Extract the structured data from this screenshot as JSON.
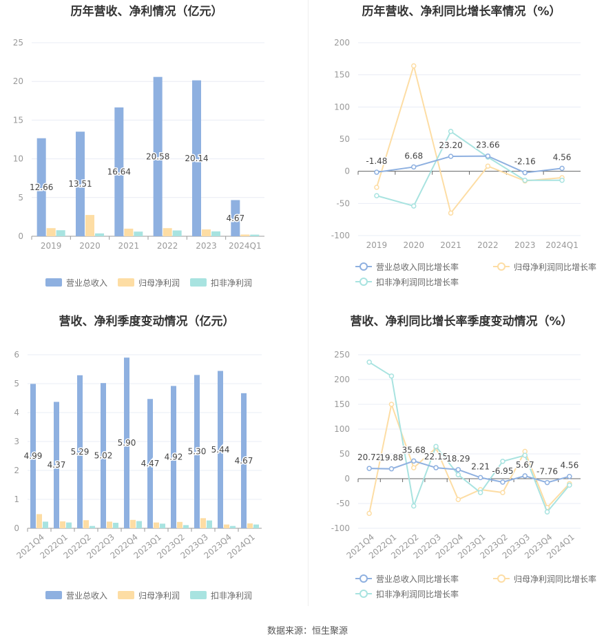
{
  "colors": {
    "revenue": "#8EB0E0",
    "net_profit": "#FDDDA4",
    "deducted_profit": "#A8E3E0",
    "revenue_line": "#8EB0E0",
    "net_profit_line": "#FDDDA4",
    "deducted_line": "#A8E3E0",
    "axis_text": "#999999",
    "label_text": "#444444",
    "title_text": "#333333",
    "grid": "#E8ECF4"
  },
  "footer": {
    "source": "数据来源：恒生聚源"
  },
  "chart_data": [
    {
      "type": "bar",
      "title": "历年营收、净利情况（亿元）",
      "categories": [
        "2019",
        "2020",
        "2021",
        "2022",
        "2023",
        "2024Q1"
      ],
      "yticks": [
        "0",
        "5",
        "10",
        "15",
        "20",
        "25"
      ],
      "ylim": [
        0,
        25
      ],
      "series": [
        {
          "name": "营业总收入",
          "values": [
            12.66,
            13.51,
            16.64,
            20.58,
            20.14,
            4.67
          ],
          "labels": [
            "12.66",
            "13.51",
            "16.64",
            "20.58",
            "20.14",
            "4.67"
          ]
        },
        {
          "name": "归母净利润",
          "values": [
            1.05,
            2.75,
            0.98,
            1.05,
            0.88,
            0.22
          ]
        },
        {
          "name": "扣非净利润",
          "values": [
            0.78,
            0.37,
            0.6,
            0.75,
            0.63,
            0.21
          ]
        }
      ],
      "legend": "bottom"
    },
    {
      "type": "line",
      "title": "历年营收、净利同比增长率情况（%）",
      "categories": [
        "2019",
        "2020",
        "2021",
        "2022",
        "2023",
        "2024Q1"
      ],
      "yticks": [
        "-100",
        "-50",
        "0",
        "50",
        "100",
        "150",
        "200"
      ],
      "ylim": [
        -100,
        200
      ],
      "series": [
        {
          "name": "营业总收入同比增长率",
          "values": [
            -1.48,
            6.68,
            23.2,
            23.66,
            -2.16,
            4.56
          ],
          "labels": [
            "-1.48",
            "6.68",
            "23.20",
            "23.66",
            "-2.16",
            "4.56"
          ]
        },
        {
          "name": "归母净利润同比增长率",
          "values": [
            -25,
            164,
            -65,
            8,
            -15,
            -10
          ]
        },
        {
          "name": "扣非净利润同比增长率",
          "values": [
            -38,
            -54,
            62,
            22,
            -14,
            -14
          ]
        }
      ],
      "legend": "bottom"
    },
    {
      "type": "bar",
      "title": "营收、净利季度变动情况（亿元）",
      "categories": [
        "2021Q4",
        "2022Q1",
        "2022Q2",
        "2022Q3",
        "2022Q4",
        "2023Q1",
        "2023Q2",
        "2023Q3",
        "2023Q4",
        "2024Q1"
      ],
      "yticks": [
        "0",
        "1",
        "2",
        "3",
        "4",
        "5",
        "6"
      ],
      "ylim": [
        0,
        6
      ],
      "series": [
        {
          "name": "营业总收入",
          "values": [
            4.99,
            4.37,
            5.29,
            5.02,
            5.9,
            4.47,
            4.92,
            5.3,
            5.44,
            4.67
          ],
          "labels": [
            "4.99",
            "4.37",
            "5.29",
            "5.02",
            "5.90",
            "4.47",
            "4.92",
            "5.30",
            "5.44",
            "4.67"
          ]
        },
        {
          "name": "归母净利润",
          "values": [
            0.49,
            0.24,
            0.28,
            0.23,
            0.29,
            0.2,
            0.22,
            0.35,
            0.13,
            0.17
          ]
        },
        {
          "name": "扣非净利润",
          "values": [
            0.23,
            0.2,
            0.08,
            0.19,
            0.25,
            0.16,
            0.11,
            0.27,
            0.08,
            0.13
          ]
        }
      ],
      "legend": "bottom"
    },
    {
      "type": "line",
      "title": "营收、净利同比增长率季度变动情况（%）",
      "categories": [
        "2021Q4",
        "2022Q1",
        "2022Q2",
        "2022Q3",
        "2022Q4",
        "2023Q1",
        "2023Q2",
        "2023Q3",
        "2023Q4",
        "2024Q1"
      ],
      "yticks": [
        "-100",
        "-50",
        "0",
        "50",
        "100",
        "150",
        "200",
        "250"
      ],
      "ylim": [
        -100,
        250
      ],
      "series": [
        {
          "name": "营业总收入同比增长率",
          "values": [
            20.72,
            19.88,
            35.68,
            22.15,
            18.29,
            2.21,
            -6.95,
            5.67,
            -7.76,
            4.56
          ],
          "labels": [
            "20.72",
            "19.88",
            "35.68",
            "22.15",
            "18.29",
            "2.21",
            "-6.95",
            "5.67",
            "-7.76",
            "4.56"
          ]
        },
        {
          "name": "归母净利润同比增长率",
          "values": [
            -70,
            150,
            22,
            62,
            -42,
            -22,
            -28,
            55,
            -58,
            -10
          ]
        },
        {
          "name": "扣非净利润同比增长率",
          "values": [
            235,
            207,
            -55,
            65,
            8,
            -28,
            35,
            47,
            -67,
            -13
          ]
        }
      ],
      "legend": "bottom"
    }
  ]
}
